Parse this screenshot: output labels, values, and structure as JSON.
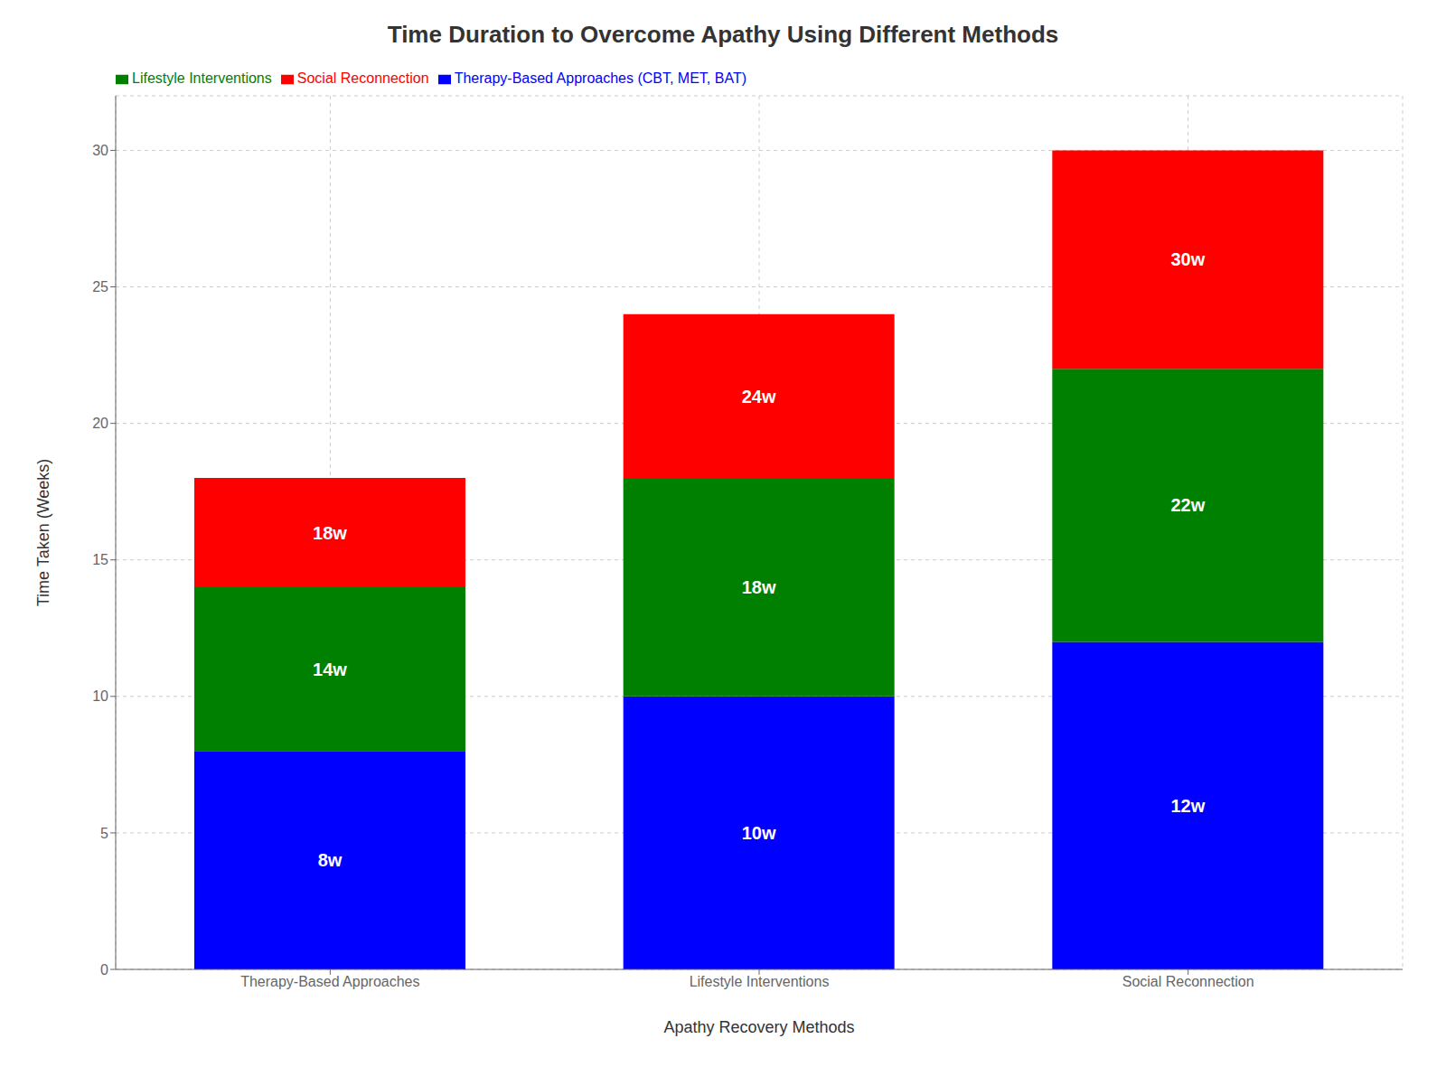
{
  "chart_data": {
    "type": "bar",
    "stacked": true,
    "title": "Time Duration to Overcome Apathy Using Different Methods",
    "x_label": "Apathy Recovery Methods",
    "y_label": "Time Taken (Weeks)",
    "categories": [
      "Therapy-Based Approaches",
      "Lifestyle Interventions",
      "Social Reconnection"
    ],
    "series": [
      {
        "name": "Therapy-Based Approaches (CBT, MET, BAT)",
        "color": "#0000ff",
        "values": [
          8,
          10,
          12
        ],
        "value_labels": [
          "8w",
          "10w",
          "12w"
        ]
      },
      {
        "name": "Lifestyle Interventions",
        "color": "#008000",
        "values": [
          6,
          8,
          10
        ],
        "value_labels": [
          "14w",
          "18w",
          "22w"
        ]
      },
      {
        "name": "Social Reconnection",
        "color": "#ff0000",
        "values": [
          4,
          6,
          8
        ],
        "value_labels": [
          "18w",
          "24w",
          "30w"
        ]
      }
    ],
    "ylim": [
      0,
      32
    ],
    "yticks": [
      0,
      5,
      10,
      15,
      20,
      25,
      30
    ],
    "grid": true,
    "legend": "upper left",
    "data_labels": true
  }
}
